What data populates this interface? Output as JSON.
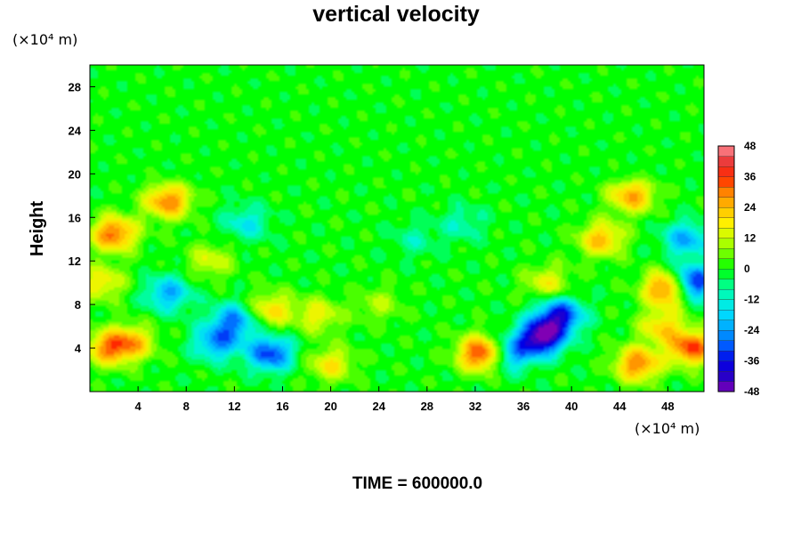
{
  "chart_data": {
    "type": "heatmap",
    "title": "vertical velocity",
    "ylabel": "Height",
    "xlabel": "",
    "x_unit": "(×10⁴ m)",
    "y_unit": "(×10⁴ m)",
    "x_range": [
      0,
      51
    ],
    "y_range": [
      0,
      30
    ],
    "x_ticks": [
      4,
      8,
      12,
      16,
      20,
      24,
      28,
      32,
      36,
      40,
      44,
      48
    ],
    "y_ticks": [
      4,
      8,
      12,
      16,
      20,
      24,
      28
    ],
    "colorbar": {
      "min": -48,
      "max": 48,
      "step": 4,
      "tick_labels": [
        48,
        36,
        24,
        12,
        0,
        -12,
        -24,
        -36,
        -48
      ]
    },
    "footer": "TIME = 600000.0",
    "features": [
      {
        "x": 1.5,
        "y": 4.0,
        "value": 26
      },
      {
        "x": 3.5,
        "y": 4.5,
        "value": 22
      },
      {
        "x": 2.0,
        "y": 14.5,
        "value": 32
      },
      {
        "x": 6.5,
        "y": 17.5,
        "value": 30
      },
      {
        "x": 1.0,
        "y": 10.0,
        "value": 18
      },
      {
        "x": 10.5,
        "y": 4.5,
        "value": -24
      },
      {
        "x": 12.0,
        "y": 6.5,
        "value": -26
      },
      {
        "x": 15.0,
        "y": 3.5,
        "value": -32
      },
      {
        "x": 6.5,
        "y": 9.0,
        "value": -22
      },
      {
        "x": 15.0,
        "y": 7.5,
        "value": 20
      },
      {
        "x": 10.0,
        "y": 12.0,
        "value": 14
      },
      {
        "x": 19.0,
        "y": 7.0,
        "value": 16
      },
      {
        "x": 20.0,
        "y": 2.5,
        "value": 18
      },
      {
        "x": 24.0,
        "y": 8.0,
        "value": 10
      },
      {
        "x": 32.5,
        "y": 3.5,
        "value": 38
      },
      {
        "x": 37.5,
        "y": 5.0,
        "value": -46
      },
      {
        "x": 39.0,
        "y": 7.0,
        "value": -36
      },
      {
        "x": 35.0,
        "y": 3.5,
        "value": -24
      },
      {
        "x": 38.0,
        "y": 10.0,
        "value": 16
      },
      {
        "x": 42.5,
        "y": 14.0,
        "value": 24
      },
      {
        "x": 45.0,
        "y": 18.0,
        "value": 26
      },
      {
        "x": 48.0,
        "y": 9.5,
        "value": 38
      },
      {
        "x": 50.0,
        "y": 10.0,
        "value": -40
      },
      {
        "x": 50.0,
        "y": 4.0,
        "value": 34
      },
      {
        "x": 47.5,
        "y": 6.0,
        "value": 20
      },
      {
        "x": 45.5,
        "y": 2.5,
        "value": 30
      },
      {
        "x": 49.5,
        "y": 14.0,
        "value": -22
      },
      {
        "x": 27.0,
        "y": 14.0,
        "value": -8
      },
      {
        "x": 31.0,
        "y": 15.5,
        "value": -10
      },
      {
        "x": 13.0,
        "y": 15.5,
        "value": -14
      }
    ]
  }
}
